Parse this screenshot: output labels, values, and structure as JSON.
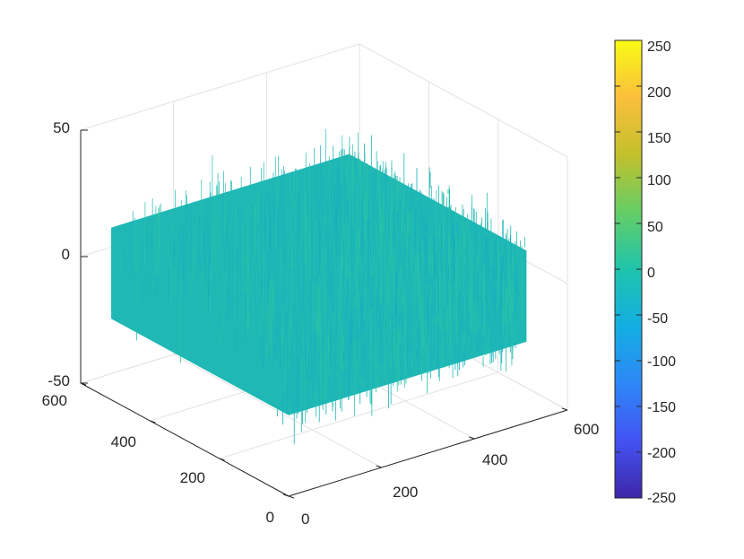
{
  "chart_data": {
    "type": "surface",
    "title": "",
    "xlabel": "",
    "ylabel": "",
    "zlabel": "",
    "x_range": [
      0,
      600
    ],
    "y_range": [
      0,
      600
    ],
    "z_range": [
      -50,
      50
    ],
    "x_ticks": [
      "0",
      "200",
      "400",
      "600"
    ],
    "y_ticks": [
      "0",
      "200",
      "400",
      "600"
    ],
    "z_ticks": [
      "-50",
      "0",
      "50"
    ],
    "surface": {
      "extent_x": [
        0,
        512
      ],
      "extent_y": [
        0,
        512
      ],
      "z_mean": 0,
      "z_min_approx": -40,
      "z_max_approx": 40,
      "dominant_color": "#1fb8b5"
    },
    "grid": true,
    "view": "3d",
    "colorbar": {
      "location": "right",
      "range": [
        -250,
        250
      ],
      "ticks": [
        "250",
        "200",
        "150",
        "100",
        "50",
        "0",
        "-50",
        "-100",
        "-150",
        "-200",
        "-250"
      ],
      "colormap": [
        "#3e26a8",
        "#4353f3",
        "#2e87f7",
        "#13aee2",
        "#1fc4ac",
        "#65ce66",
        "#c3c02c",
        "#fbbf3c",
        "#f9fb15"
      ]
    }
  }
}
